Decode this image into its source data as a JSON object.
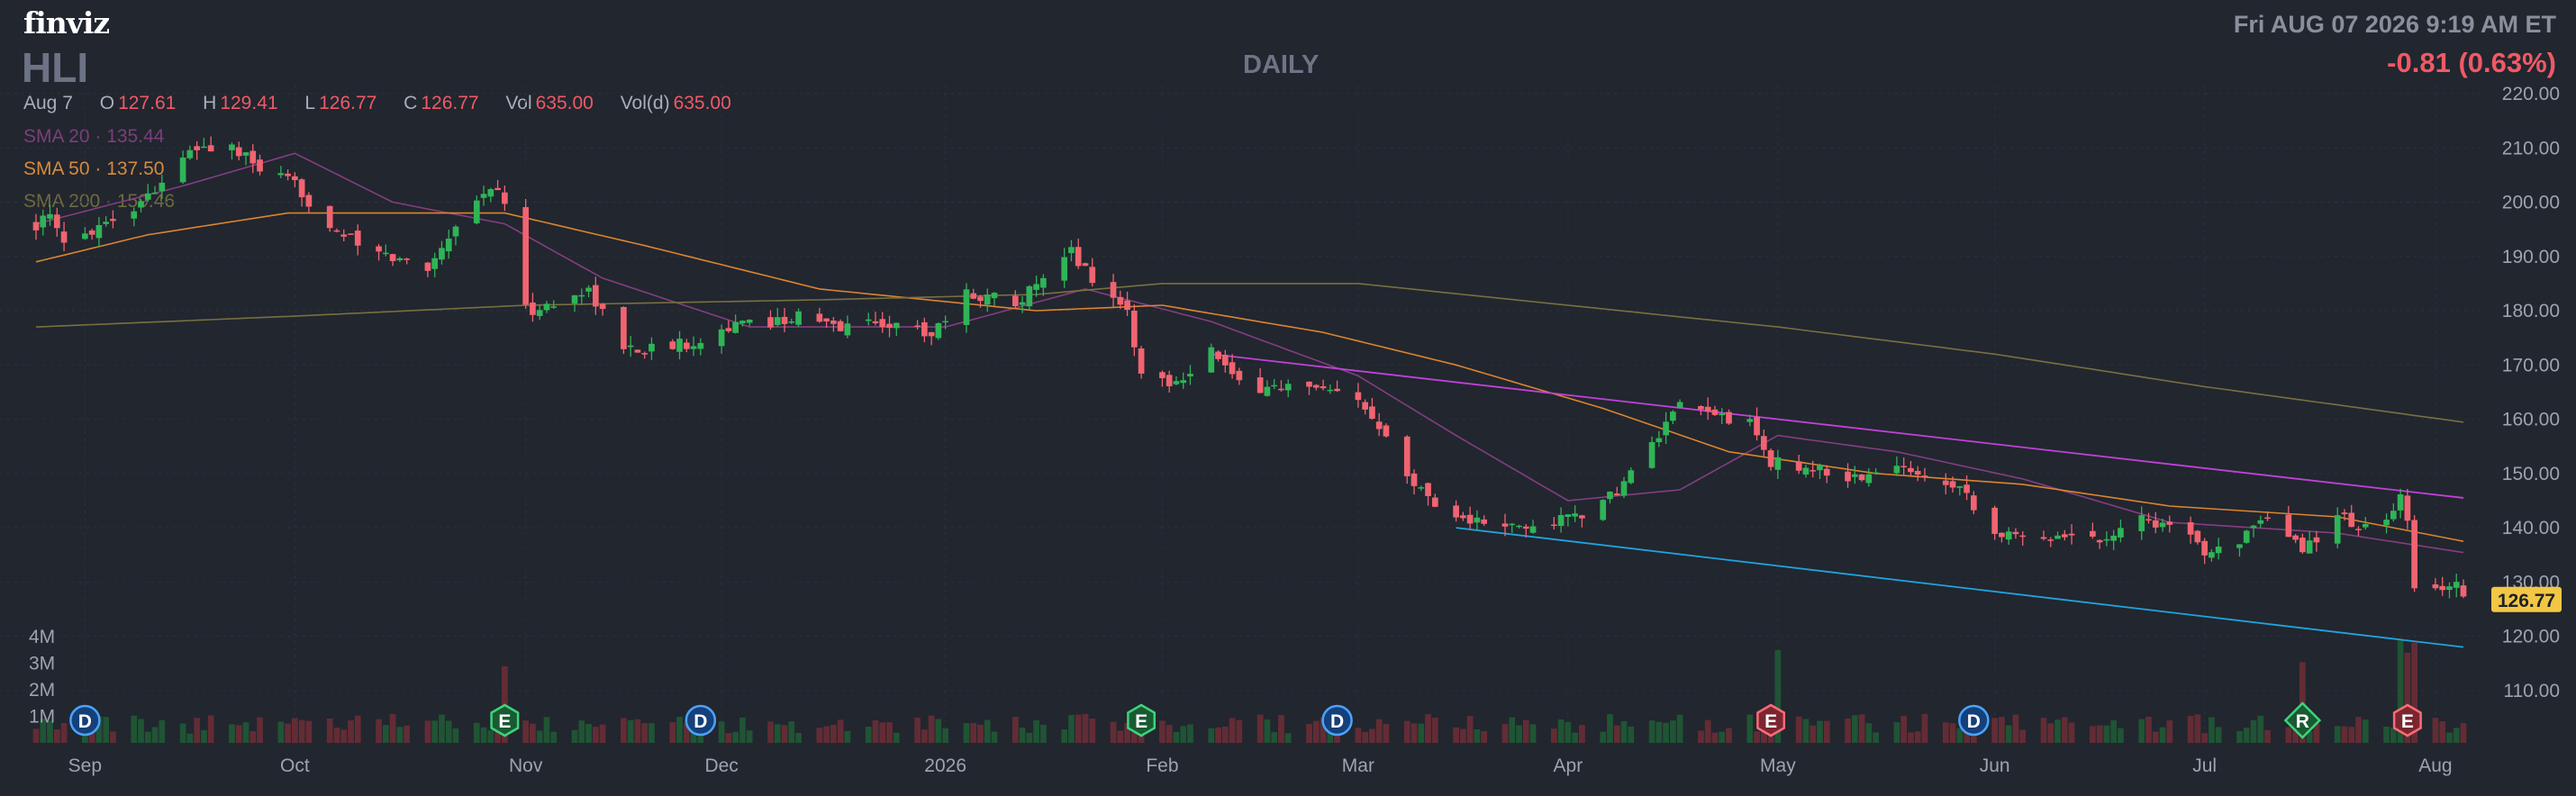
{
  "header": {
    "logo": "finviz",
    "ticker": "HLI",
    "interval": "DAILY",
    "datetime": "Fri AUG 07 2026 9:19 AM ET",
    "change": "-0.81 (0.63%)"
  },
  "ohlc": {
    "date": "Aug 7",
    "open_label": "O",
    "open": "127.61",
    "high_label": "H",
    "high": "129.41",
    "low_label": "L",
    "low": "126.77",
    "close_label": "C",
    "close": "126.77",
    "vol_label": "Vol",
    "vol": "635.00",
    "vold_label": "Vol(d)",
    "vold": "635.00"
  },
  "indicators": {
    "sma20": "SMA 20 · 135.44",
    "sma50": "SMA 50 · 137.50",
    "sma200": "SMA 200 · 159.46"
  },
  "colors": {
    "background": "#22262f",
    "up": "#2fb457",
    "down": "#f06470",
    "sma20": "#8a3f86",
    "sma50": "#e58a2e",
    "sma200": "#7d7440",
    "resistance": "#c042d8",
    "support": "#1ea5dc",
    "price_tag": "#f2c744"
  },
  "chart_data": {
    "type": "candlestick",
    "title": "HLI",
    "ylim": [
      105,
      220
    ],
    "y_ticks": [
      110,
      120,
      130,
      140,
      150,
      160,
      170,
      180,
      190,
      200,
      210,
      220
    ],
    "y_tick_labels": [
      "110.00",
      "120.00",
      "130.00",
      "140.00",
      "150.00",
      "160.00",
      "170.00",
      "180.00",
      "190.00",
      "200.00",
      "210.00",
      "220.00"
    ],
    "volume_ticks": [
      "1M",
      "2M",
      "3M",
      "4M"
    ],
    "volume_tick_values": [
      1000000,
      2000000,
      3000000,
      4000000
    ],
    "volume_max": 5000000,
    "x_labels": [
      "Sep",
      "Oct",
      "Nov",
      "Dec",
      "2026",
      "Feb",
      "Mar",
      "Apr",
      "May",
      "Jun",
      "Jul",
      "Aug"
    ],
    "x_label_dates": [
      "2025-09-01",
      "2025-10-01",
      "2025-11-03",
      "2025-12-01",
      "2026-01-02",
      "2026-02-02",
      "2026-03-02",
      "2026-04-01",
      "2026-05-01",
      "2026-06-01",
      "2026-07-01",
      "2026-08-03"
    ],
    "last_price": "126.77",
    "price_key_points": [
      [
        "2025-08-25",
        196
      ],
      [
        "2025-08-27",
        197
      ],
      [
        "2025-08-29",
        192
      ],
      [
        "2025-09-03",
        196
      ],
      [
        "2025-09-08",
        199
      ],
      [
        "2025-09-12",
        204
      ],
      [
        "2025-09-17",
        210
      ],
      [
        "2025-09-22",
        210
      ],
      [
        "2025-09-26",
        206
      ],
      [
        "2025-10-01",
        203
      ],
      [
        "2025-10-06",
        196
      ],
      [
        "2025-10-10",
        192
      ],
      [
        "2025-10-14",
        190
      ],
      [
        "2025-10-20",
        188
      ],
      [
        "2025-10-24",
        196
      ],
      [
        "2025-10-29",
        203
      ],
      [
        "2025-10-31",
        200
      ],
      [
        "2025-11-03",
        180
      ],
      [
        "2025-11-07",
        181
      ],
      [
        "2025-11-12",
        184
      ],
      [
        "2025-11-17",
        173
      ],
      [
        "2025-11-21",
        173
      ],
      [
        "2025-11-26",
        174
      ],
      [
        "2025-12-02",
        177
      ],
      [
        "2025-12-08",
        178
      ],
      [
        "2025-12-12",
        179
      ],
      [
        "2025-12-17",
        177
      ],
      [
        "2025-12-23",
        178
      ],
      [
        "2025-12-31",
        176
      ],
      [
        "2026-01-05",
        183
      ],
      [
        "2026-01-12",
        182
      ],
      [
        "2026-01-16",
        185
      ],
      [
        "2026-01-20",
        191
      ],
      [
        "2026-01-23",
        186
      ],
      [
        "2026-01-28",
        180
      ],
      [
        "2026-01-30",
        168
      ],
      [
        "2026-02-04",
        167
      ],
      [
        "2026-02-09",
        173
      ],
      [
        "2026-02-13",
        166
      ],
      [
        "2026-02-20",
        166
      ],
      [
        "2026-02-25",
        165
      ],
      [
        "2026-03-02",
        163
      ],
      [
        "2026-03-06",
        158
      ],
      [
        "2026-03-10",
        148
      ],
      [
        "2026-03-16",
        142
      ],
      [
        "2026-03-23",
        140
      ],
      [
        "2026-03-27",
        140
      ],
      [
        "2026-04-01",
        142
      ],
      [
        "2026-04-06",
        144
      ],
      [
        "2026-04-10",
        150
      ],
      [
        "2026-04-14",
        157
      ],
      [
        "2026-04-17",
        162
      ],
      [
        "2026-04-22",
        161
      ],
      [
        "2026-04-27",
        159
      ],
      [
        "2026-04-30",
        152
      ],
      [
        "2026-05-06",
        151
      ],
      [
        "2026-05-12",
        149
      ],
      [
        "2026-05-18",
        151
      ],
      [
        "2026-05-22",
        150
      ],
      [
        "2026-05-27",
        148
      ],
      [
        "2026-06-01",
        139
      ],
      [
        "2026-06-05",
        138
      ],
      [
        "2026-06-10",
        139
      ],
      [
        "2026-06-16",
        138
      ],
      [
        "2026-06-22",
        142
      ],
      [
        "2026-06-26",
        140
      ],
      [
        "2026-07-01",
        136
      ],
      [
        "2026-07-06",
        138
      ],
      [
        "2026-07-10",
        141
      ],
      [
        "2026-07-15",
        136
      ],
      [
        "2026-07-20",
        142
      ],
      [
        "2026-07-24",
        140
      ],
      [
        "2026-07-27",
        141
      ],
      [
        "2026-07-29",
        145
      ],
      [
        "2026-07-30",
        141
      ],
      [
        "2026-07-31",
        128
      ],
      [
        "2026-08-04",
        129
      ],
      [
        "2026-08-06",
        130
      ],
      [
        "2026-08-07",
        127
      ]
    ],
    "series": [
      {
        "name": "SMA 20",
        "points": [
          [
            "2025-08-25",
            196
          ],
          [
            "2025-09-15",
            203
          ],
          [
            "2025-10-01",
            209
          ],
          [
            "2025-10-15",
            200
          ],
          [
            "2025-10-31",
            196
          ],
          [
            "2025-11-14",
            186
          ],
          [
            "2025-12-05",
            177
          ],
          [
            "2026-01-02",
            177
          ],
          [
            "2026-01-22",
            184
          ],
          [
            "2026-02-09",
            178
          ],
          [
            "2026-03-02",
            168
          ],
          [
            "2026-03-16",
            157
          ],
          [
            "2026-04-01",
            145
          ],
          [
            "2026-04-17",
            147
          ],
          [
            "2026-05-01",
            157
          ],
          [
            "2026-05-18",
            154
          ],
          [
            "2026-06-05",
            149
          ],
          [
            "2026-06-26",
            141
          ],
          [
            "2026-07-20",
            139
          ],
          [
            "2026-08-07",
            135.44
          ]
        ]
      },
      {
        "name": "SMA 50",
        "points": [
          [
            "2025-08-25",
            189
          ],
          [
            "2025-09-10",
            194
          ],
          [
            "2025-09-30",
            198
          ],
          [
            "2025-10-31",
            198
          ],
          [
            "2025-11-20",
            192
          ],
          [
            "2025-12-15",
            184
          ],
          [
            "2026-01-15",
            180
          ],
          [
            "2026-02-02",
            181
          ],
          [
            "2026-02-25",
            176
          ],
          [
            "2026-03-16",
            170
          ],
          [
            "2026-04-06",
            162
          ],
          [
            "2026-04-24",
            154
          ],
          [
            "2026-05-15",
            150
          ],
          [
            "2026-06-05",
            148
          ],
          [
            "2026-06-26",
            144
          ],
          [
            "2026-07-20",
            142
          ],
          [
            "2026-08-07",
            137.5
          ]
        ]
      },
      {
        "name": "SMA 200",
        "points": [
          [
            "2025-08-25",
            177
          ],
          [
            "2025-10-01",
            179
          ],
          [
            "2025-11-03",
            181
          ],
          [
            "2025-12-15",
            182
          ],
          [
            "2026-01-15",
            183
          ],
          [
            "2026-02-02",
            185
          ],
          [
            "2026-03-02",
            185
          ],
          [
            "2026-04-01",
            181
          ],
          [
            "2026-05-01",
            177
          ],
          [
            "2026-06-01",
            172
          ],
          [
            "2026-07-01",
            166
          ],
          [
            "2026-08-07",
            159.46
          ]
        ]
      }
    ],
    "trendlines": [
      {
        "points": [
          [
            "2026-02-09",
            172
          ],
          [
            "2026-08-07",
            145.5
          ]
        ]
      },
      {
        "points": [
          [
            "2026-03-16",
            140
          ],
          [
            "2026-08-07",
            118
          ]
        ]
      }
    ],
    "volume_spike_dates": [
      "2025-10-31",
      "2026-05-01",
      "2026-07-15",
      "2026-07-29",
      "2026-07-30",
      "2026-07-31"
    ],
    "events": [
      {
        "date": "2025-09-01",
        "label": "D"
      },
      {
        "date": "2025-10-31",
        "label": "E"
      },
      {
        "date": "2025-11-28",
        "label": "D"
      },
      {
        "date": "2026-01-30",
        "label": "E"
      },
      {
        "date": "2026-02-27",
        "label": "D"
      },
      {
        "date": "2026-04-30",
        "label": "E"
      },
      {
        "date": "2026-05-29",
        "label": "D"
      },
      {
        "date": "2026-07-15",
        "label": "R"
      },
      {
        "date": "2026-07-30",
        "label": "E"
      }
    ]
  }
}
